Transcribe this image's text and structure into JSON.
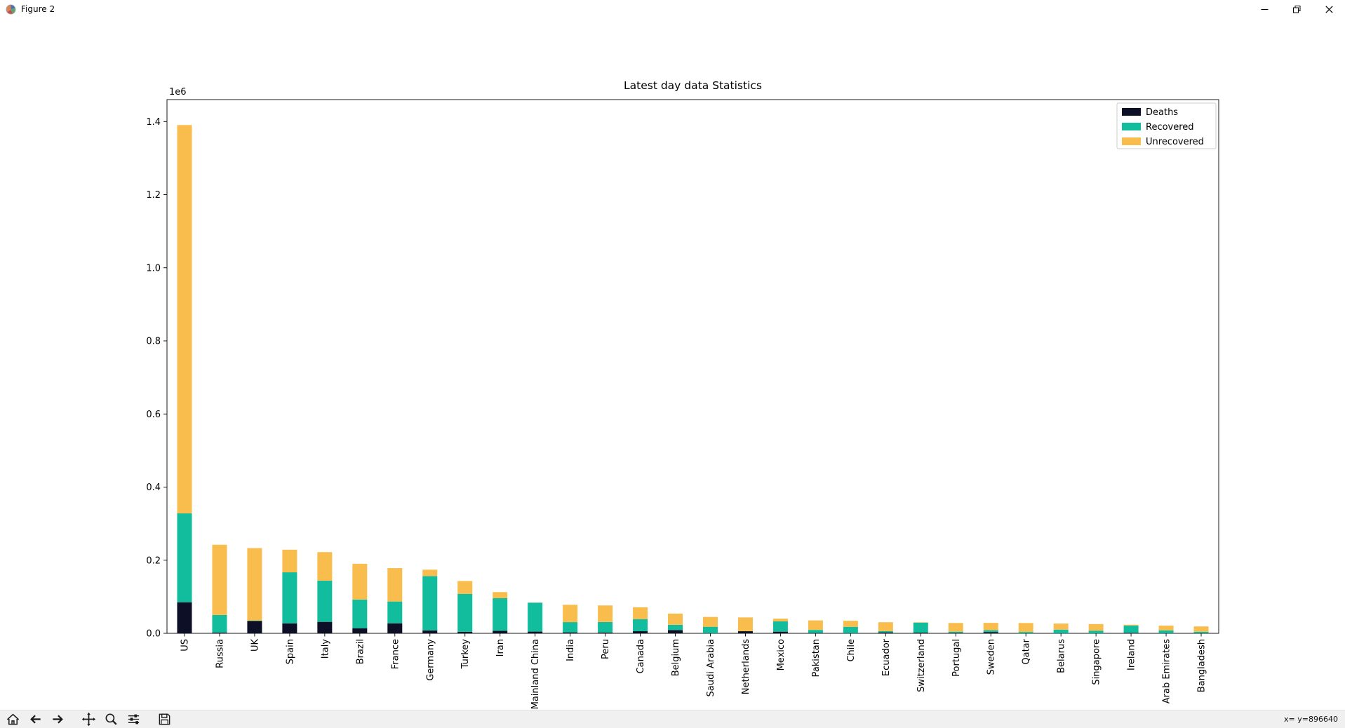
{
  "window": {
    "title": "Figure 2",
    "controls": {
      "minimize_icon": "minimize-icon",
      "restore_icon": "restore-icon",
      "close_icon": "close-icon"
    }
  },
  "toolbar": {
    "icons": [
      "home-icon",
      "back-arrow-icon",
      "forward-arrow-icon",
      "pan-icon",
      "zoom-icon",
      "configure-subplots-icon",
      "save-icon"
    ]
  },
  "statusbar": {
    "cursor_readout": "x= y=896640"
  },
  "chart_data": {
    "type": "bar",
    "stacked": true,
    "title": "Latest day data Statistics",
    "xlabel": "",
    "ylabel": "",
    "axis_offset_label": "1e6",
    "grid": false,
    "legend_position": "upper right",
    "ylim": [
      0,
      1460000
    ],
    "yticks": [
      0,
      200000,
      400000,
      600000,
      800000,
      1000000,
      1200000,
      1400000
    ],
    "ytick_labels": [
      "0.0",
      "0.2",
      "0.4",
      "0.6",
      "0.8",
      "1.0",
      "1.2",
      "1.4"
    ],
    "categories": [
      "US",
      "Russia",
      "UK",
      "Spain",
      "Italy",
      "Brazil",
      "France",
      "Germany",
      "Turkey",
      "Iran",
      "Mainland China",
      "India",
      "Peru",
      "Canada",
      "Belgium",
      "Saudi Arabia",
      "Netherlands",
      "Mexico",
      "Pakistan",
      "Chile",
      "Ecuador",
      "Switzerland",
      "Portugal",
      "Sweden",
      "Qatar",
      "Belarus",
      "Singapore",
      "Ireland",
      "Arab Emirates",
      "Bangladesh"
    ],
    "series": [
      {
        "name": "Deaths",
        "color": "#0c0f26",
        "values": [
          85000,
          2212,
          33614,
          27321,
          31368,
          13999,
          27428,
          7861,
          3952,
          6902,
          4633,
          2649,
          2267,
          5702,
          8959,
          273,
          5680,
          4477,
          803,
          368,
          2594,
          1879,
          1190,
          3529,
          16,
          151,
          21,
          1506,
          210,
          283
        ]
      },
      {
        "name": "Recovered",
        "color": "#12bd9d",
        "values": [
          243430,
          48003,
          1023,
          139529,
          112541,
          78424,
          59605,
          148700,
          104030,
          89428,
          79198,
          27920,
          28621,
          33227,
          14301,
          17622,
          250,
          28475,
          8555,
          17368,
          3433,
          27100,
          3198,
          4971,
          3660,
          9932,
          7248,
          19470,
          7931,
          3882
        ]
      },
      {
        "name": "Unrecovered",
        "color": "#f9bd4d",
        "values": [
          1061976,
          192056,
          198514,
          61841,
          78195,
          97714,
          91316,
          17537,
          35132,
          16395,
          193,
          47486,
          45418,
          32335,
          30721,
          26935,
          37551,
          7234,
          25940,
          16645,
          24271,
          1401,
          23931,
          20082,
          24596,
          16689,
          18077,
          2425,
          12943,
          14698
        ]
      }
    ]
  }
}
